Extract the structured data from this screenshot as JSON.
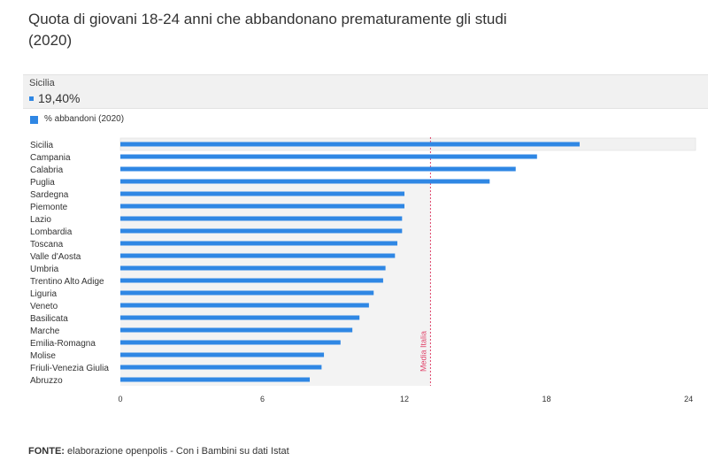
{
  "title": "Quota di giovani 18-24 anni che abbandonano prematuramente gli studi (2020)",
  "tooltip": {
    "region": "Sicilia",
    "value": "19,40%"
  },
  "legend": {
    "label": "% abbandoni (2020)"
  },
  "footer": {
    "label": "FONTE:",
    "text": " elaborazione openpolis - Con i Bambini su dati Istat"
  },
  "colors": {
    "bar": "#2f87e4",
    "reference": "#e0456b",
    "highlight": "#f1f1f1"
  },
  "chart_data": {
    "type": "bar",
    "orientation": "horizontal",
    "categories": [
      "Sicilia",
      "Campania",
      "Calabria",
      "Puglia",
      "Sardegna",
      "Piemonte",
      "Lazio",
      "Lombardia",
      "Toscana",
      "Valle d'Aosta",
      "Umbria",
      "Trentino Alto Adige",
      "Liguria",
      "Veneto",
      "Basilicata",
      "Marche",
      "Emilia-Romagna",
      "Molise",
      "Friuli-Venezia Giulia",
      "Abruzzo"
    ],
    "series": [
      {
        "name": "% abbandoni (2020)",
        "values": [
          19.4,
          17.6,
          16.7,
          15.6,
          12.0,
          12.0,
          11.9,
          11.9,
          11.7,
          11.6,
          11.2,
          11.1,
          10.7,
          10.5,
          10.1,
          9.8,
          9.3,
          8.6,
          8.5,
          8.0
        ]
      }
    ],
    "xlim": [
      0,
      24
    ],
    "xticks": [
      0,
      6,
      12,
      18,
      24
    ],
    "reference_line": {
      "label": "Media Italia",
      "value": 13.1
    },
    "highlighted_category": "Sicilia",
    "grid": false,
    "legend_position": "top-left"
  }
}
